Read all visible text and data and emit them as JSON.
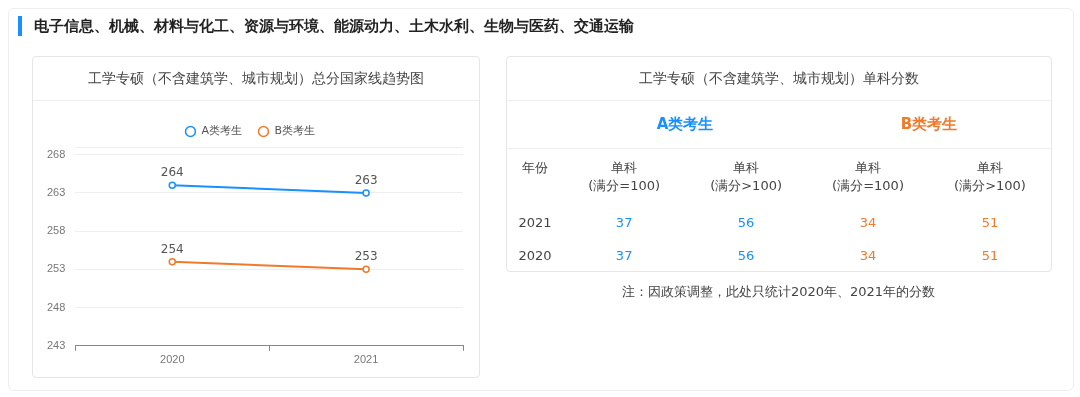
{
  "chart_data": [
    {
      "type": "line",
      "title": "工学专硕（不含建筑学、城市规划）总分国家线趋势图",
      "annotations": [
        "电子信息、机械、材料与化工、资源与环境、能源动力、土木水利、生物与医药、交通运输"
      ],
      "categories": [
        "2020",
        "2021"
      ],
      "series": [
        {
          "name": "A类考生",
          "color": "#1890ff",
          "values": [
            264,
            263
          ]
        },
        {
          "name": "B类考生",
          "color": "#f07a2a",
          "values": [
            254,
            253
          ]
        }
      ],
      "ylim": [
        243,
        269
      ],
      "yticks": [
        243,
        248,
        253,
        258,
        263,
        268,
        {
          "value": 269,
          "label": null
        }
      ],
      "grid": "y",
      "legend": "top",
      "marker": "circle",
      "data_labels": true
    },
    {
      "type": "other",
      "title": "工学专硕（不含建筑学、城市规划）单科分数",
      "annotations": [
        "A类考生",
        "B类考生",
        "年份",
        "单科\n(满分=100)",
        "单科\n(满分>100)",
        "单科\n(满分=100)",
        "单科\n(满分>100)",
        "2021",
        "37",
        "56",
        "34",
        "51",
        "2020",
        "37",
        "56",
        "34",
        "51",
        "注：因政策调整，此处只统计2020年、2021年的分数"
      ]
    }
  ]
}
